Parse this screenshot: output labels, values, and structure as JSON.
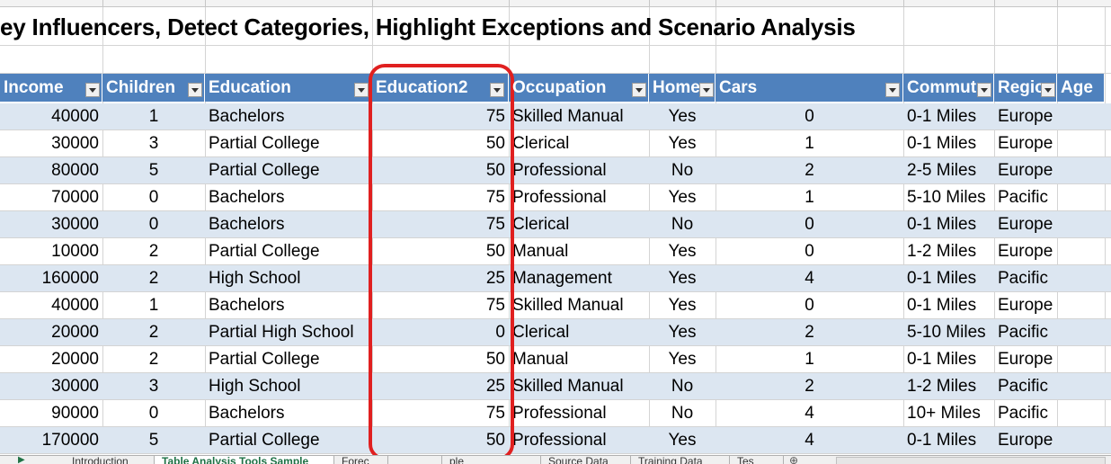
{
  "title": "ey Influencers, Detect Categories, Highlight Exceptions and Scenario Analysis",
  "columns": {
    "income": "Income",
    "children": "Children",
    "education": "Education",
    "education2": "Education2",
    "occupation": "Occupation",
    "home": "Home",
    "cars": "Cars",
    "commute": "Commut",
    "region": "Regio",
    "age": "Age"
  },
  "rows": [
    {
      "income": "40000",
      "children": "1",
      "education": "Bachelors",
      "education2": "75",
      "occupation": "Skilled Manual",
      "home": "Yes",
      "cars": "0",
      "commute": "0-1 Miles",
      "region": "Europe"
    },
    {
      "income": "30000",
      "children": "3",
      "education": "Partial College",
      "education2": "50",
      "occupation": "Clerical",
      "home": "Yes",
      "cars": "1",
      "commute": "0-1 Miles",
      "region": "Europe"
    },
    {
      "income": "80000",
      "children": "5",
      "education": "Partial College",
      "education2": "50",
      "occupation": "Professional",
      "home": "No",
      "cars": "2",
      "commute": "2-5 Miles",
      "region": "Europe"
    },
    {
      "income": "70000",
      "children": "0",
      "education": "Bachelors",
      "education2": "75",
      "occupation": "Professional",
      "home": "Yes",
      "cars": "1",
      "commute": "5-10 Miles",
      "region": "Pacific"
    },
    {
      "income": "30000",
      "children": "0",
      "education": "Bachelors",
      "education2": "75",
      "occupation": "Clerical",
      "home": "No",
      "cars": "0",
      "commute": "0-1 Miles",
      "region": "Europe"
    },
    {
      "income": "10000",
      "children": "2",
      "education": "Partial College",
      "education2": "50",
      "occupation": "Manual",
      "home": "Yes",
      "cars": "0",
      "commute": "1-2 Miles",
      "region": "Europe"
    },
    {
      "income": "160000",
      "children": "2",
      "education": "High School",
      "education2": "25",
      "occupation": "Management",
      "home": "Yes",
      "cars": "4",
      "commute": "0-1 Miles",
      "region": "Pacific"
    },
    {
      "income": "40000",
      "children": "1",
      "education": "Bachelors",
      "education2": "75",
      "occupation": "Skilled Manual",
      "home": "Yes",
      "cars": "0",
      "commute": "0-1 Miles",
      "region": "Europe"
    },
    {
      "income": "20000",
      "children": "2",
      "education": "Partial High School",
      "education2": "0",
      "occupation": "Clerical",
      "home": "Yes",
      "cars": "2",
      "commute": "5-10 Miles",
      "region": "Pacific"
    },
    {
      "income": "20000",
      "children": "2",
      "education": "Partial College",
      "education2": "50",
      "occupation": "Manual",
      "home": "Yes",
      "cars": "1",
      "commute": "0-1 Miles",
      "region": "Europe"
    },
    {
      "income": "30000",
      "children": "3",
      "education": "High School",
      "education2": "25",
      "occupation": "Skilled Manual",
      "home": "No",
      "cars": "2",
      "commute": "1-2 Miles",
      "region": "Pacific"
    },
    {
      "income": "90000",
      "children": "0",
      "education": "Bachelors",
      "education2": "75",
      "occupation": "Professional",
      "home": "No",
      "cars": "4",
      "commute": "10+ Miles",
      "region": "Pacific"
    },
    {
      "income": "170000",
      "children": "5",
      "education": "Partial College",
      "education2": "50",
      "occupation": "Professional",
      "home": "Yes",
      "cars": "4",
      "commute": "0-1 Miles",
      "region": "Europe"
    }
  ],
  "tabs": [
    "Introduction",
    "Table Analysis Tools Sample",
    "Forec",
    "",
    "ple",
    "Source Data",
    "Training Data",
    "Tes"
  ],
  "active_tab": "Table Analysis Tools Sample",
  "colors": {
    "header_bg": "#4f81bd",
    "band_bg": "#dce6f1",
    "highlight": "#e02020",
    "active_tab_text": "#1e7145"
  },
  "icons": {
    "filter": "dropdown-arrow-icon",
    "add_sheet": "plus-circle-icon",
    "tab_scroll": "triangle-right-icon"
  }
}
